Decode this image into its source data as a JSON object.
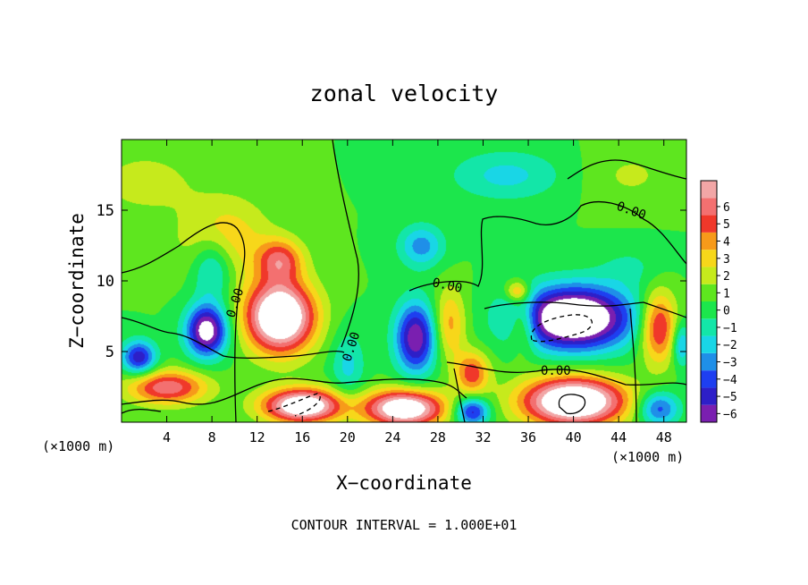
{
  "chart_data": {
    "type": "heatmap",
    "title": "zonal velocity",
    "xlabel": "X−coordinate",
    "ylabel": "Z−coordinate",
    "x_unit_left": "(×1000 m)",
    "x_unit_right": "(×1000 m)",
    "footer": "CONTOUR INTERVAL = 1.000E+01",
    "xlim": [
      0,
      50
    ],
    "ylim": [
      0,
      20
    ],
    "x_ticks": [
      4,
      8,
      12,
      16,
      20,
      24,
      28,
      32,
      36,
      40,
      44,
      48
    ],
    "y_ticks": [
      5,
      10,
      15
    ],
    "colorbar": {
      "levels": [
        -6,
        -5,
        -4,
        -3,
        -2,
        -1,
        0,
        1,
        2,
        3,
        4,
        5,
        6
      ],
      "colors": [
        "#7a1fb0",
        "#2d1fc8",
        "#1e3ff0",
        "#1f8fe8",
        "#19d6e6",
        "#13e6a8",
        "#1ce64c",
        "#5ee61f",
        "#c6ea1c",
        "#f7d71a",
        "#f79a1a",
        "#f0382a",
        "#f37070",
        "#f2a6a6"
      ],
      "saturated_color": "#ffffff"
    },
    "contour_labels": [
      "0.00",
      "0.00",
      "0.00",
      "0.00",
      "0.00"
    ],
    "field_features": [
      {
        "x": 9,
        "z": 13,
        "value": 2.5,
        "sx": 4,
        "sz": 3
      },
      {
        "x": 7.5,
        "z": 6.5,
        "value": -7,
        "sx": 1.8,
        "sz": 1.8
      },
      {
        "x": 1.5,
        "z": 4.6,
        "value": -5,
        "sx": 1.5,
        "sz": 1.2
      },
      {
        "x": 8,
        "z": 11,
        "value": -3,
        "sx": 1.8,
        "sz": 2.2
      },
      {
        "x": 14,
        "z": 7.5,
        "value": 9,
        "sx": 3,
        "sz": 2.5
      },
      {
        "x": 14,
        "z": 11.5,
        "value": 4,
        "sx": 2,
        "sz": 1.5
      },
      {
        "x": 4,
        "z": 2.5,
        "value": 5,
        "sx": 3.5,
        "sz": 1.2
      },
      {
        "x": 16,
        "z": 1.2,
        "value": 8,
        "sx": 3.5,
        "sz": 1.2
      },
      {
        "x": 26,
        "z": 6,
        "value": -6,
        "sx": 1.8,
        "sz": 2.5
      },
      {
        "x": 26.5,
        "z": 12.5,
        "value": -3,
        "sx": 2,
        "sz": 1.5
      },
      {
        "x": 25,
        "z": 1,
        "value": 8,
        "sx": 3.5,
        "sz": 1.3
      },
      {
        "x": 29,
        "z": 7,
        "value": 3,
        "sx": 1.4,
        "sz": 2.5
      },
      {
        "x": 31,
        "z": 3.5,
        "value": 4,
        "sx": 1.5,
        "sz": 1.5
      },
      {
        "x": 31,
        "z": 0.8,
        "value": -5,
        "sx": 1.5,
        "sz": 1.0
      },
      {
        "x": 40,
        "z": 7.4,
        "value": -9,
        "sx": 5,
        "sz": 2.2
      },
      {
        "x": 40,
        "z": 1.5,
        "value": 9,
        "sx": 4.5,
        "sz": 1.7
      },
      {
        "x": 35.5,
        "z": 7,
        "value": 3,
        "sx": 1.2,
        "sz": 2
      },
      {
        "x": 35,
        "z": 9.3,
        "value": 3,
        "sx": 1,
        "sz": 0.7
      },
      {
        "x": 47.5,
        "z": 6.8,
        "value": 5,
        "sx": 1.6,
        "sz": 2.5
      },
      {
        "x": 47.5,
        "z": 1,
        "value": -4,
        "sx": 1.8,
        "sz": 1.2
      },
      {
        "x": 49.5,
        "z": 5.5,
        "value": -3,
        "sx": 0.8,
        "sz": 1.5
      },
      {
        "x": 34,
        "z": 17.5,
        "value": -2,
        "sx": 5,
        "sz": 1.8
      },
      {
        "x": 20,
        "z": 4,
        "value": -2,
        "sx": 1.5,
        "sz": 2.5
      },
      {
        "x": 2,
        "z": 17,
        "value": 1.5,
        "sx": 4,
        "sz": 2
      },
      {
        "x": 45,
        "z": 17.5,
        "value": 1,
        "sx": 4,
        "sz": 2
      },
      {
        "x": 45,
        "z": 11,
        "value": -1,
        "sx": 3,
        "sz": 1.5
      }
    ]
  }
}
